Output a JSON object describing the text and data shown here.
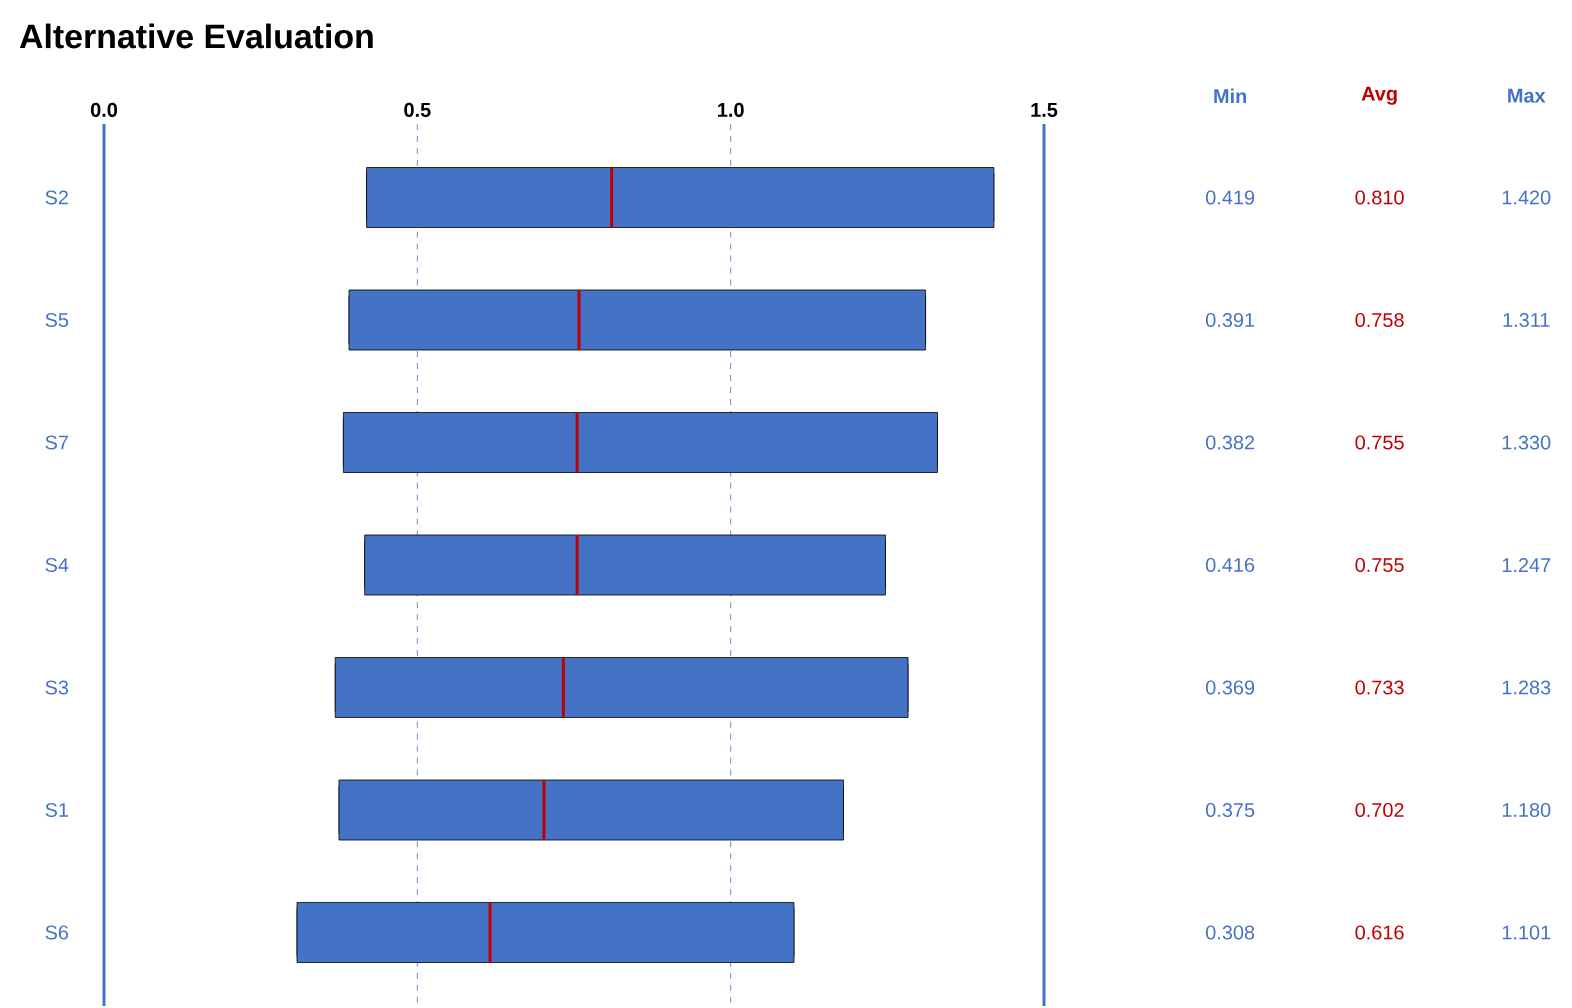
{
  "chart_data": {
    "type": "box",
    "orientation": "horizontal",
    "title": "Alternative Evaluation",
    "categories": [
      "S2",
      "S5",
      "S7",
      "S4",
      "S3",
      "S1",
      "S6"
    ],
    "boxes": [
      {
        "low": 0.419,
        "q1": 0.419,
        "median": 0.81,
        "q3": 1.42,
        "high": 1.42
      },
      {
        "low": 0.391,
        "q1": 0.391,
        "median": 0.758,
        "q3": 1.311,
        "high": 1.311
      },
      {
        "low": 0.382,
        "q1": 0.382,
        "median": 0.755,
        "q3": 1.33,
        "high": 1.33
      },
      {
        "low": 0.416,
        "q1": 0.416,
        "median": 0.755,
        "q3": 1.247,
        "high": 1.247
      },
      {
        "low": 0.369,
        "q1": 0.369,
        "median": 0.733,
        "q3": 1.283,
        "high": 1.283
      },
      {
        "low": 0.375,
        "q1": 0.375,
        "median": 0.702,
        "q3": 1.18,
        "high": 1.18
      },
      {
        "low": 0.308,
        "q1": 0.308,
        "median": 0.616,
        "q3": 1.101,
        "high": 1.101
      }
    ],
    "color": "#4472c4",
    "xlim": [
      0,
      1.5
    ],
    "xticks": [
      {
        "value": 0,
        "label": "0.0"
      },
      {
        "value": 0.5,
        "label": "0.5"
      },
      {
        "value": 1,
        "label": "1.0"
      },
      {
        "value": 1.5,
        "label": "1.5"
      }
    ],
    "grid": "x",
    "annotations": [
      "Min",
      "Avg",
      "Max",
      "0.419",
      "0.810",
      "1.420",
      "0.391",
      "0.758",
      "1.311",
      "0.382",
      "0.755",
      "1.330",
      "0.416",
      "0.755",
      "1.247",
      "0.369",
      "0.733",
      "1.283",
      "0.375",
      "0.702",
      "1.180",
      "0.308",
      "0.616",
      "1.101"
    ]
  }
}
